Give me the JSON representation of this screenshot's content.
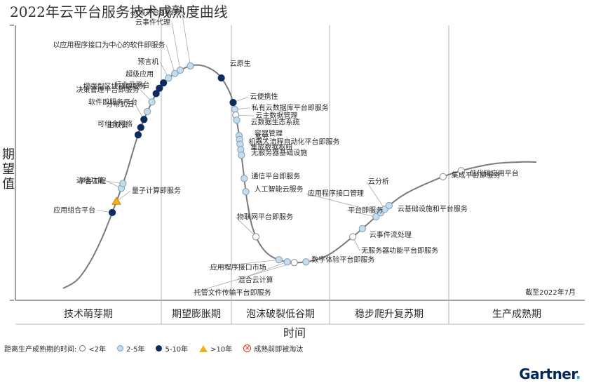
{
  "title": "2022年云平台服务技术成熟度曲线",
  "chart_data": {
    "type": "hype-cycle",
    "title": "2022年云平台服务技术成熟度曲线",
    "ylabel": "期望值",
    "xlabel": "时间",
    "as_of": "截至2022年7月",
    "phases": [
      "技术萌芽期",
      "期望膨胀期",
      "泡沫破裂低谷期",
      "稳步爬升复苏期",
      "生产成熟期"
    ],
    "legend_title": "距离生产成熟期的时间:",
    "legend": [
      {
        "key": "lt2",
        "label": "<2年",
        "color": "#ffffff"
      },
      {
        "key": "2to5",
        "label": "2-5年",
        "color": "#c5dcec"
      },
      {
        "key": "5to10",
        "label": "5-10年",
        "color": "#0e2c5b"
      },
      {
        "key": "gt10",
        "label": ">10年",
        "color": "#f3b21c"
      },
      {
        "key": "obs",
        "label": "成熟前即被淘汰",
        "color": "#d6302a"
      }
    ],
    "points": [
      {
        "name": "应用组合平台",
        "cat": "5to10",
        "t": 0.1185
      },
      {
        "name": "量子计算即服务",
        "cat": "gt10",
        "t": 0.1335
      },
      {
        "name": "边缘功能",
        "cat": "2to5",
        "t": 0.1515
      },
      {
        "name": "平台工程",
        "cat": "2to5",
        "t": 0.158
      },
      {
        "name": "可组合网络",
        "cat": "5to10",
        "t": 0.223
      },
      {
        "name": "主权云",
        "cat": "5to10",
        "t": 0.233
      },
      {
        "name": "分布式云",
        "cat": "5to10",
        "t": 0.244
      },
      {
        "name": "软件即服务平台",
        "cat": "2to5",
        "t": 0.255
      },
      {
        "name": "决策管理平台即服务",
        "cat": "2to5",
        "t": 0.2685
      },
      {
        "name": "增强型区块链即服务",
        "cat": "5to10",
        "t": 0.2805
      },
      {
        "name": "行业云平台",
        "cat": "5to10",
        "t": 0.2885
      },
      {
        "name": "超级应用",
        "cat": "5to10",
        "t": 0.297
      },
      {
        "name": "预言机",
        "cat": "2to5",
        "t": 0.306
      },
      {
        "name": "以应用程序接口为中心的软件即服务",
        "cat": "2to5",
        "t": 0.316
      },
      {
        "name": "云事件代理",
        "cat": "2to5",
        "t": 0.324
      },
      {
        "name": "边缘平台即服务",
        "cat": "2to5",
        "t": 0.338
      },
      {
        "name": "云原生",
        "cat": "5to10",
        "t": 0.383
      },
      {
        "name": "云便携性",
        "cat": "5to10",
        "t": 0.418
      },
      {
        "name": "私有云数据库平台即服务",
        "cat": "2to5",
        "t": 0.427
      },
      {
        "name": "云主数据管理",
        "cat": "lt2",
        "t": 0.4345
      },
      {
        "name": "云数据生态系统",
        "cat": "2to5",
        "t": 0.441
      },
      {
        "name": "容器管理",
        "cat": "2to5",
        "t": 0.461
      },
      {
        "name": "多云",
        "cat": "2to5",
        "t": 0.466
      },
      {
        "name": "机器人流程自动化平台即服务",
        "cat": "2to5",
        "t": 0.472
      },
      {
        "name": "集成数据枢纽",
        "cat": "2to5",
        "t": 0.479
      },
      {
        "name": "无服务器基础设施",
        "cat": "2to5",
        "t": 0.486
      },
      {
        "name": "通信平台即服务",
        "cat": "2to5",
        "t": 0.516
      },
      {
        "name": "人工智能云服务",
        "cat": "2to5",
        "t": 0.533
      },
      {
        "name": "物联网平台即服务",
        "cat": "lt2",
        "t": 0.592
      },
      {
        "name": "应用程序接口市场",
        "cat": "2to5",
        "t": 0.635
      },
      {
        "name": "混合云计算",
        "cat": "2to5",
        "t": 0.646
      },
      {
        "name": "托管文件传输平台即服务",
        "cat": "lt2",
        "t": 0.655
      },
      {
        "name": "数字体验平台即服务",
        "cat": "2to5",
        "t": 0.67
      },
      {
        "name": "无服务器功能平台即服务",
        "cat": "lt2",
        "t": 0.739
      },
      {
        "name": "云事件流处理",
        "cat": "2to5",
        "t": 0.755
      },
      {
        "name": "平台即服务",
        "cat": "2to5",
        "t": 0.778
      },
      {
        "name": "应用程序接口管理",
        "cat": "2to5",
        "t": 0.786
      },
      {
        "name": "云分析",
        "cat": "2to5",
        "t": 0.793
      },
      {
        "name": "云基础设施和平台服务",
        "cat": "2to5",
        "t": 0.8
      },
      {
        "name": "集成平台即服务",
        "cat": "lt2",
        "t": 0.8785
      },
      {
        "name": "低代码应用平台",
        "cat": "lt2",
        "t": 0.903
      }
    ]
  },
  "legend_text": {
    "title": "距离生产成熟期的时间:",
    "lt2": "<2年",
    "2to5": "2-5年",
    "5to10": "5-10年",
    "gt10": ">10年",
    "obs": "成熟前即被淘汰"
  },
  "brand": {
    "name": "Gartner",
    "dot": "."
  }
}
